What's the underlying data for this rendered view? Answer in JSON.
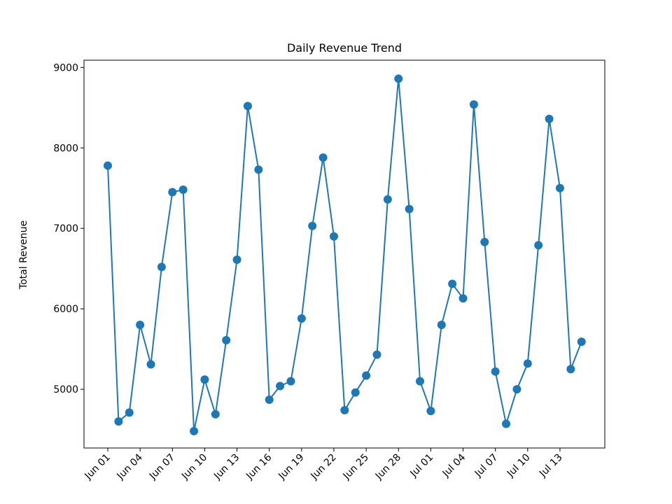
{
  "chart_data": {
    "type": "line",
    "title": "Daily Revenue Trend",
    "xlabel": "",
    "ylabel": "Total Revenue",
    "grid": false,
    "legend": "none",
    "color": "#1f77b4",
    "x_start": "2024-06-01",
    "x": [
      "Jun 01",
      "Jun 02",
      "Jun 03",
      "Jun 04",
      "Jun 05",
      "Jun 06",
      "Jun 07",
      "Jun 08",
      "Jun 09",
      "Jun 10",
      "Jun 11",
      "Jun 12",
      "Jun 13",
      "Jun 14",
      "Jun 15",
      "Jun 16",
      "Jun 17",
      "Jun 18",
      "Jun 19",
      "Jun 20",
      "Jun 21",
      "Jun 22",
      "Jun 23",
      "Jun 24",
      "Jun 25",
      "Jun 26",
      "Jun 27",
      "Jun 28",
      "Jun 29",
      "Jun 30",
      "Jul 01",
      "Jul 02",
      "Jul 03",
      "Jul 04",
      "Jul 05",
      "Jul 06",
      "Jul 07",
      "Jul 08",
      "Jul 09",
      "Jul 10",
      "Jul 11",
      "Jul 12",
      "Jul 13",
      "Jul 14",
      "Jul 15"
    ],
    "values": [
      7780,
      4600,
      4710,
      5800,
      5310,
      6520,
      7450,
      7480,
      4480,
      5120,
      4690,
      5610,
      6610,
      8520,
      7730,
      4870,
      5040,
      5100,
      5880,
      7030,
      7880,
      6900,
      4740,
      4960,
      5170,
      5430,
      7360,
      8860,
      7240,
      5100,
      4730,
      5800,
      6310,
      6130,
      8540,
      6830,
      5220,
      4570,
      5000,
      5320,
      6790,
      8360,
      7500,
      5250,
      5590
    ],
    "xticks": [
      "Jun 01",
      "Jun 04",
      "Jun 07",
      "Jun 10",
      "Jun 13",
      "Jun 16",
      "Jun 19",
      "Jun 22",
      "Jun 25",
      "Jun 28",
      "Jul 01",
      "Jul 04",
      "Jul 07",
      "Jul 10",
      "Jul 13"
    ],
    "yticks": [
      5000,
      6000,
      7000,
      8000,
      9000
    ],
    "ylim": [
      4270,
      9090
    ]
  }
}
